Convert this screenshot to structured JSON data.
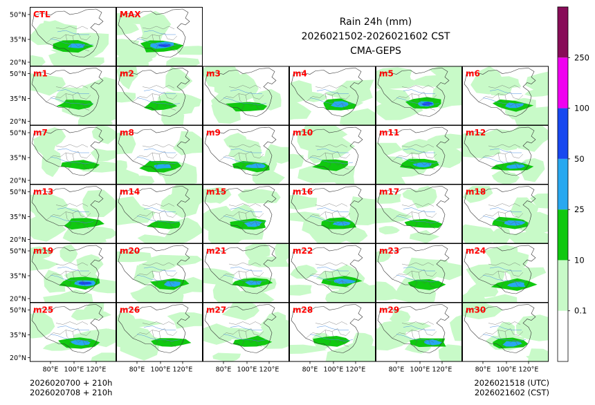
{
  "chart_data": {
    "type": "heatmap",
    "title": {
      "line1": "Rain 24h (mm)",
      "line2": "2026021502-2026021602 CST",
      "line3": "CMA-GEPS"
    },
    "panels": [
      {
        "label": "CTL",
        "intensity": 0.55
      },
      {
        "label": "MAX",
        "intensity": 0.95
      },
      {
        "label": "m1",
        "intensity": 0.3
      },
      {
        "label": "m2",
        "intensity": 0.25
      },
      {
        "label": "m3",
        "intensity": 0.45
      },
      {
        "label": "m4",
        "intensity": 0.55
      },
      {
        "label": "m5",
        "intensity": 0.7
      },
      {
        "label": "m6",
        "intensity": 0.6
      },
      {
        "label": "m7",
        "intensity": 0.4
      },
      {
        "label": "m8",
        "intensity": 0.5
      },
      {
        "label": "m9",
        "intensity": 0.55
      },
      {
        "label": "m10",
        "intensity": 0.45
      },
      {
        "label": "m11",
        "intensity": 0.6
      },
      {
        "label": "m12",
        "intensity": 0.5
      },
      {
        "label": "m13",
        "intensity": 0.45
      },
      {
        "label": "m14",
        "intensity": 0.3
      },
      {
        "label": "m15",
        "intensity": 0.55
      },
      {
        "label": "m16",
        "intensity": 0.5
      },
      {
        "label": "m17",
        "intensity": 0.35
      },
      {
        "label": "m18",
        "intensity": 0.65
      },
      {
        "label": "m19",
        "intensity": 0.7
      },
      {
        "label": "m20",
        "intensity": 0.5
      },
      {
        "label": "m21",
        "intensity": 0.5
      },
      {
        "label": "m22",
        "intensity": 0.5
      },
      {
        "label": "m23",
        "intensity": 0.45
      },
      {
        "label": "m24",
        "intensity": 0.6
      },
      {
        "label": "m25",
        "intensity": 0.55
      },
      {
        "label": "m26",
        "intensity": 0.45
      },
      {
        "label": "m27",
        "intensity": 0.45
      },
      {
        "label": "m28",
        "intensity": 0.4
      },
      {
        "label": "m29",
        "intensity": 0.5
      },
      {
        "label": "m30",
        "intensity": 0.5
      }
    ],
    "y_ticks": [
      "50°N",
      "35°N",
      "20°N"
    ],
    "x_ticks": [
      "80°E",
      "100°E",
      "120°E"
    ],
    "colorbar": {
      "levels": [
        "0.1",
        "10",
        "25",
        "50",
        "100",
        "250"
      ],
      "colors": [
        "#ffffff",
        "#c8fac8",
        "#10c810",
        "#28a8f0",
        "#1848f0",
        "#f000f0",
        "#880c58"
      ]
    },
    "footer": {
      "init_utc": "2026020700 + 210h",
      "init_cst": "2026020708 + 210h",
      "valid_utc": "2026021518 (UTC)",
      "valid_cst": "2026021602 (CST)"
    }
  }
}
